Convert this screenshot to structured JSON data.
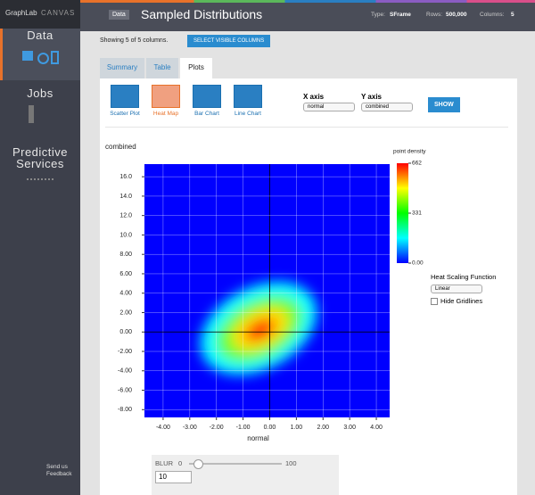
{
  "app": {
    "brand": "GraphLab",
    "brand2": "CANVAS"
  },
  "nav": [
    "Data",
    "Jobs",
    "Predictive Services"
  ],
  "feedback": "Send us Feedback",
  "header": {
    "badge": "Data",
    "title": "Sampled Distributions",
    "type_label": "Type:",
    "type": "SFrame",
    "rows_label": "Rows:",
    "rows": "500,000",
    "columns_label": "Columns:",
    "columns": "5"
  },
  "toolbar": {
    "showing": "Showing 5 of 5 columns.",
    "button": "SELECT VISIBLE COLUMNS"
  },
  "tabs": [
    "Summary",
    "Table",
    "Plots"
  ],
  "plot_types": [
    "Scatter Plot",
    "Heat Map",
    "Bar Chart",
    "Line Chart"
  ],
  "x_axis": {
    "label": "X axis",
    "value": "normal"
  },
  "y_axis": {
    "label": "Y axis",
    "value": "combined"
  },
  "show": "SHOW",
  "chart_data": {
    "type": "heatmap",
    "ylabel": "combined",
    "xlabel": "normal",
    "xlim": [
      -4.7,
      4.5
    ],
    "ylim": [
      -8.8,
      17.3
    ],
    "xticks": [
      {
        "value": -4,
        "label": "-4.00"
      },
      {
        "value": -3,
        "label": "-3.00"
      },
      {
        "value": -2,
        "label": "-2.00"
      },
      {
        "value": -1,
        "label": "-1.00"
      },
      {
        "value": 0,
        "label": "0.00"
      },
      {
        "value": 1,
        "label": "1.00"
      },
      {
        "value": 2,
        "label": "2.00"
      },
      {
        "value": 3,
        "label": "3.00"
      },
      {
        "value": 4,
        "label": "4.00"
      }
    ],
    "yticks": [
      {
        "value": 16,
        "label": "16.0"
      },
      {
        "value": 14,
        "label": "14.0"
      },
      {
        "value": 12,
        "label": "12.0"
      },
      {
        "value": 10,
        "label": "10.0"
      },
      {
        "value": 8,
        "label": "8.00"
      },
      {
        "value": 6,
        "label": "6.00"
      },
      {
        "value": 4,
        "label": "4.00"
      },
      {
        "value": 2,
        "label": "2.00"
      },
      {
        "value": 0,
        "label": "0.00"
      },
      {
        "value": -2,
        "label": "-2.00"
      },
      {
        "value": -4,
        "label": "-4.00"
      },
      {
        "value": -6,
        "label": "-6.00"
      },
      {
        "value": -8,
        "label": "-8.00"
      }
    ],
    "grid": true,
    "colorbar": {
      "title": "point density",
      "lim": [
        0,
        662
      ],
      "ticks": [
        662,
        331,
        {
          "value": 0,
          "label": "0.00"
        }
      ]
    }
  },
  "heat_scaling": {
    "label": "Heat Scaling Function",
    "value": "Linear"
  },
  "hide_gridlines": "Hide Gridlines",
  "blur": {
    "label": "BLUR",
    "min": 0,
    "max": 100,
    "value": 10
  }
}
